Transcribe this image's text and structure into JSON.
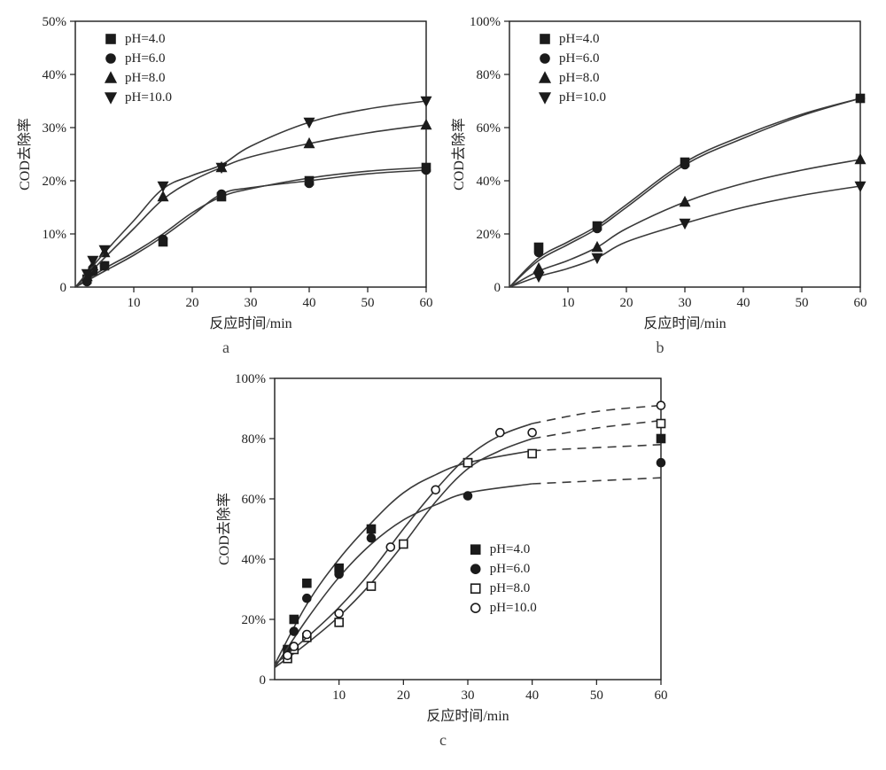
{
  "figure": {
    "background_color": "#ffffff",
    "axis_color": "#1b1b1b",
    "curve_color": "#3a3a3a",
    "text_color": "#222222",
    "font_family": "Times New Roman, serif",
    "ylabel": "COD去除率",
    "xlabel": "反应时间/min",
    "panels": {
      "a": {
        "label": "a",
        "xlim": [
          0,
          60
        ],
        "ylim": [
          0,
          50
        ],
        "xticks": [
          10,
          20,
          30,
          40,
          50,
          60
        ],
        "yticks": [
          0,
          10,
          20,
          30,
          40,
          50
        ],
        "ytick_suffix": "%",
        "legend_pos": "upper-left",
        "series": [
          {
            "label": "pH=4.0",
            "marker": "square",
            "fill": true,
            "points": [
              [
                2,
                1.5
              ],
              [
                3,
                3
              ],
              [
                5,
                4
              ],
              [
                15,
                8.5
              ],
              [
                25,
                17
              ],
              [
                40,
                20
              ],
              [
                60,
                22.5
              ]
            ],
            "curve": [
              [
                0,
                0
              ],
              [
                5,
                3.5
              ],
              [
                10,
                6.5
              ],
              [
                15,
                10
              ],
              [
                20,
                14
              ],
              [
                25,
                17
              ],
              [
                30,
                18.5
              ],
              [
                40,
                20.5
              ],
              [
                50,
                21.8
              ],
              [
                60,
                22.5
              ]
            ]
          },
          {
            "label": "pH=6.0",
            "marker": "circle",
            "fill": true,
            "points": [
              [
                2,
                1
              ],
              [
                3,
                3.5
              ],
              [
                5,
                4
              ],
              [
                15,
                9
              ],
              [
                25,
                17.5
              ],
              [
                40,
                19.5
              ],
              [
                60,
                22
              ]
            ],
            "curve": [
              [
                0,
                0
              ],
              [
                5,
                3
              ],
              [
                10,
                6
              ],
              [
                15,
                9.5
              ],
              [
                20,
                13.5
              ],
              [
                25,
                17.5
              ],
              [
                30,
                18.7
              ],
              [
                40,
                20
              ],
              [
                50,
                21.3
              ],
              [
                60,
                22
              ]
            ]
          },
          {
            "label": "pH=8.0",
            "marker": "triangle-up",
            "fill": true,
            "points": [
              [
                2,
                2
              ],
              [
                3,
                4
              ],
              [
                5,
                6.5
              ],
              [
                15,
                17
              ],
              [
                25,
                22.5
              ],
              [
                40,
                27
              ],
              [
                60,
                30.5
              ]
            ],
            "curve": [
              [
                0,
                0
              ],
              [
                5,
                5.5
              ],
              [
                10,
                11
              ],
              [
                15,
                16.5
              ],
              [
                20,
                20
              ],
              [
                25,
                22.5
              ],
              [
                30,
                24.5
              ],
              [
                40,
                27
              ],
              [
                50,
                29
              ],
              [
                60,
                30.5
              ]
            ]
          },
          {
            "label": "pH=10.0",
            "marker": "triangle-down",
            "fill": true,
            "points": [
              [
                2,
                2.5
              ],
              [
                3,
                5
              ],
              [
                5,
                7
              ],
              [
                15,
                19
              ],
              [
                25,
                22.5
              ],
              [
                40,
                31
              ],
              [
                60,
                35
              ]
            ],
            "curve": [
              [
                0,
                0
              ],
              [
                5,
                6.5
              ],
              [
                10,
                12.5
              ],
              [
                15,
                18.5
              ],
              [
                20,
                21
              ],
              [
                25,
                23
              ],
              [
                30,
                26.5
              ],
              [
                40,
                31
              ],
              [
                50,
                33.5
              ],
              [
                60,
                35
              ]
            ]
          }
        ]
      },
      "b": {
        "label": "b",
        "xlim": [
          0,
          60
        ],
        "ylim": [
          0,
          100
        ],
        "xticks": [
          10,
          20,
          30,
          40,
          50,
          60
        ],
        "yticks": [
          0,
          20,
          40,
          60,
          80,
          100
        ],
        "ytick_suffix": "%",
        "legend_pos": "upper-left",
        "series": [
          {
            "label": "pH=4.0",
            "marker": "square",
            "fill": true,
            "points": [
              [
                5,
                15
              ],
              [
                15,
                23
              ],
              [
                30,
                47
              ],
              [
                60,
                71
              ]
            ],
            "curve": [
              [
                0,
                0
              ],
              [
                5,
                11
              ],
              [
                10,
                17
              ],
              [
                15,
                23
              ],
              [
                20,
                31
              ],
              [
                30,
                47
              ],
              [
                40,
                57
              ],
              [
                50,
                65
              ],
              [
                60,
                71
              ]
            ]
          },
          {
            "label": "pH=6.0",
            "marker": "circle",
            "fill": true,
            "points": [
              [
                5,
                13
              ],
              [
                15,
                22
              ],
              [
                30,
                46
              ],
              [
                60,
                71
              ]
            ],
            "curve": [
              [
                0,
                0
              ],
              [
                5,
                10
              ],
              [
                10,
                16
              ],
              [
                15,
                22
              ],
              [
                20,
                30
              ],
              [
                30,
                46
              ],
              [
                40,
                56
              ],
              [
                50,
                64.5
              ],
              [
                60,
                71
              ]
            ]
          },
          {
            "label": "pH=8.0",
            "marker": "triangle-up",
            "fill": true,
            "points": [
              [
                5,
                7
              ],
              [
                15,
                15
              ],
              [
                30,
                32
              ],
              [
                60,
                48
              ]
            ],
            "curve": [
              [
                0,
                0
              ],
              [
                5,
                6
              ],
              [
                10,
                10
              ],
              [
                15,
                15
              ],
              [
                20,
                22
              ],
              [
                30,
                32
              ],
              [
                40,
                39
              ],
              [
                50,
                44
              ],
              [
                60,
                48
              ]
            ]
          },
          {
            "label": "pH=10.0",
            "marker": "triangle-down",
            "fill": true,
            "points": [
              [
                5,
                4
              ],
              [
                15,
                11
              ],
              [
                30,
                24
              ],
              [
                60,
                38
              ]
            ],
            "curve": [
              [
                0,
                0
              ],
              [
                5,
                4
              ],
              [
                10,
                7
              ],
              [
                15,
                11
              ],
              [
                20,
                17
              ],
              [
                30,
                24
              ],
              [
                40,
                30
              ],
              [
                50,
                34.5
              ],
              [
                60,
                38
              ]
            ]
          }
        ]
      },
      "c": {
        "label": "c",
        "xlim": [
          0,
          60
        ],
        "ylim": [
          0,
          100
        ],
        "xticks": [
          10,
          20,
          30,
          40,
          50,
          60
        ],
        "yticks": [
          0,
          20,
          40,
          60,
          80,
          100
        ],
        "ytick_suffix": "%",
        "legend_pos": "lower-middle",
        "dash_after_x": 40,
        "series": [
          {
            "label": "pH=4.0",
            "marker": "square",
            "fill": true,
            "points": [
              [
                2,
                10
              ],
              [
                3,
                20
              ],
              [
                5,
                32
              ],
              [
                10,
                37
              ],
              [
                15,
                50
              ],
              [
                30,
                72
              ],
              [
                60,
                80
              ]
            ],
            "curve": [
              [
                0,
                5
              ],
              [
                5,
                25
              ],
              [
                10,
                40
              ],
              [
                15,
                52
              ],
              [
                20,
                62
              ],
              [
                25,
                68
              ],
              [
                30,
                72
              ],
              [
                40,
                76
              ],
              [
                60,
                78
              ]
            ]
          },
          {
            "label": "pH=6.0",
            "marker": "circle",
            "fill": true,
            "points": [
              [
                2,
                8
              ],
              [
                3,
                16
              ],
              [
                5,
                27
              ],
              [
                10,
                35
              ],
              [
                15,
                47
              ],
              [
                30,
                61
              ],
              [
                60,
                72
              ]
            ],
            "curve": [
              [
                0,
                4
              ],
              [
                5,
                20
              ],
              [
                10,
                34
              ],
              [
                15,
                45
              ],
              [
                20,
                53
              ],
              [
                25,
                58
              ],
              [
                30,
                62
              ],
              [
                40,
                65
              ],
              [
                60,
                67
              ]
            ]
          },
          {
            "label": "pH=8.0",
            "marker": "square",
            "fill": false,
            "points": [
              [
                2,
                7
              ],
              [
                3,
                10
              ],
              [
                5,
                14
              ],
              [
                10,
                19
              ],
              [
                15,
                31
              ],
              [
                20,
                45
              ],
              [
                30,
                72
              ],
              [
                40,
                75
              ],
              [
                60,
                85
              ]
            ],
            "curve": [
              [
                0,
                4
              ],
              [
                5,
                12
              ],
              [
                10,
                21
              ],
              [
                15,
                32
              ],
              [
                20,
                45
              ],
              [
                25,
                59
              ],
              [
                30,
                70
              ],
              [
                35,
                76
              ],
              [
                40,
                80
              ],
              [
                50,
                83.5
              ],
              [
                60,
                86
              ]
            ]
          },
          {
            "label": "pH=10.0",
            "marker": "circle",
            "fill": false,
            "points": [
              [
                2,
                8
              ],
              [
                3,
                11
              ],
              [
                5,
                15
              ],
              [
                10,
                22
              ],
              [
                18,
                44
              ],
              [
                25,
                63
              ],
              [
                35,
                82
              ],
              [
                40,
                82
              ],
              [
                60,
                91
              ]
            ],
            "curve": [
              [
                0,
                5
              ],
              [
                5,
                14
              ],
              [
                10,
                24
              ],
              [
                15,
                36
              ],
              [
                20,
                50
              ],
              [
                25,
                63
              ],
              [
                30,
                74
              ],
              [
                35,
                81
              ],
              [
                40,
                85
              ],
              [
                50,
                89
              ],
              [
                60,
                91
              ]
            ]
          }
        ]
      }
    }
  }
}
